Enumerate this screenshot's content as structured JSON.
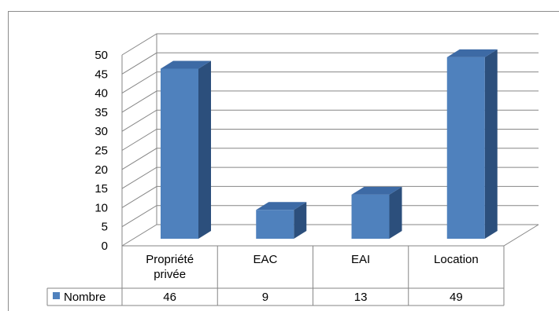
{
  "chart_data": {
    "type": "bar",
    "categories": [
      "Propriété privée",
      "EAC",
      "EAI",
      "Location"
    ],
    "category_lines": [
      [
        "Propriété",
        "privée"
      ],
      [
        "EAC"
      ],
      [
        "EAI"
      ],
      [
        "Location"
      ]
    ],
    "series": [
      {
        "name": "Nombre",
        "values": [
          46,
          9,
          13,
          49
        ]
      }
    ],
    "yticks": [
      "0",
      "5",
      "10",
      "15",
      "20",
      "25",
      "30",
      "35",
      "40",
      "45",
      "50"
    ],
    "ylim": [
      0,
      50
    ],
    "grid": true,
    "three_d": true,
    "data_table": true,
    "legend": "data-table-left",
    "colors": {
      "front": "#4f81bd",
      "side": "#2c4f7c",
      "top": "#3d6aa5",
      "grid": "#868686"
    }
  }
}
